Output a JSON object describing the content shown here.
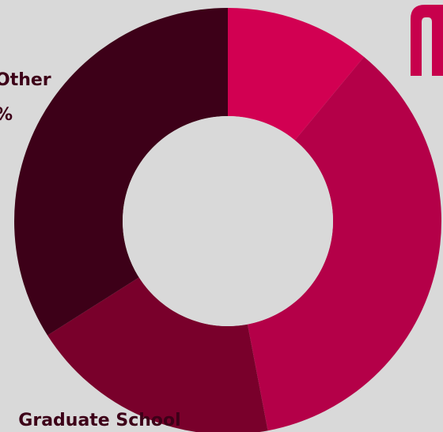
{
  "chart_data": {
    "type": "pie",
    "donut": true,
    "categories": [
      "",
      "",
      "Graduate School",
      "Other"
    ],
    "values": [
      11,
      36,
      19,
      34
    ],
    "value_labels": [
      "",
      "",
      "",
      "%"
    ],
    "title": "",
    "colors": [
      "#d20052",
      "#b40048",
      "#79002b",
      "#3d0018"
    ],
    "legend": "none"
  },
  "logo": {
    "color": "#c7004c"
  }
}
